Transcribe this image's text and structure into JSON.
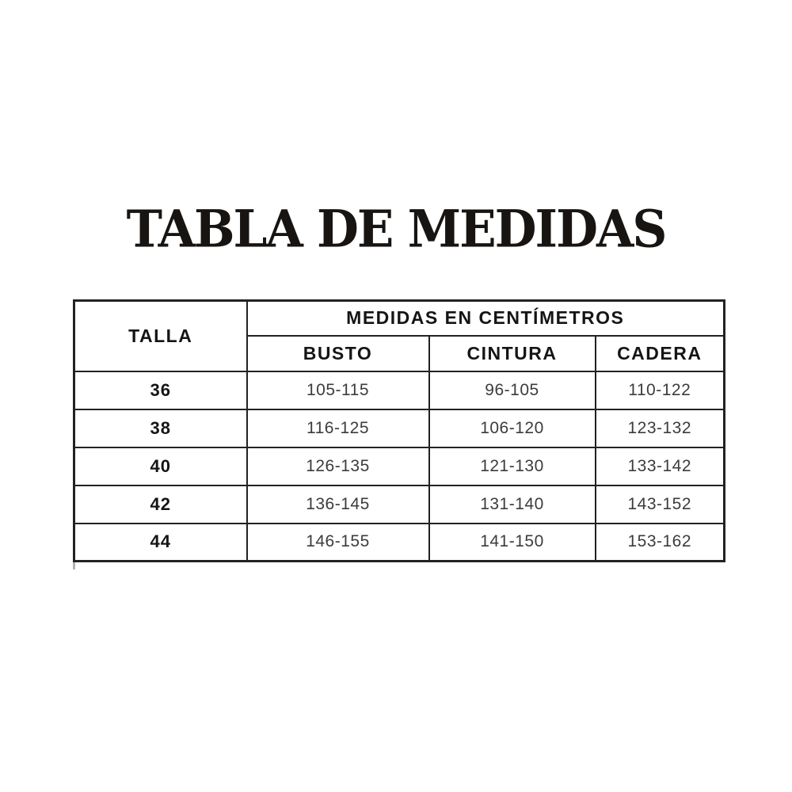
{
  "page": {
    "title": "TABLA DE MEDIDAS"
  },
  "table": {
    "corner_header": "TALLA",
    "group_header": "MEDIDAS EN CENTÍMETROS",
    "sub_headers": [
      "BUSTO",
      "CINTURA",
      "CADERA"
    ],
    "rows": [
      {
        "talla": "36",
        "busto": "105-115",
        "cintura": "96-105",
        "cadera": "110-122"
      },
      {
        "talla": "38",
        "busto": "116-125",
        "cintura": "106-120",
        "cadera": "123-132"
      },
      {
        "talla": "40",
        "busto": "126-135",
        "cintura": "121-130",
        "cadera": "133-142"
      },
      {
        "talla": "42",
        "busto": "136-145",
        "cintura": "131-140",
        "cadera": "143-152"
      },
      {
        "talla": "44",
        "busto": "146-155",
        "cintura": "141-150",
        "cadera": "153-162"
      }
    ],
    "colors": {
      "border": "#222222",
      "header_text": "#151515",
      "value_text": "#3c3c3c",
      "background": "#ffffff"
    }
  }
}
